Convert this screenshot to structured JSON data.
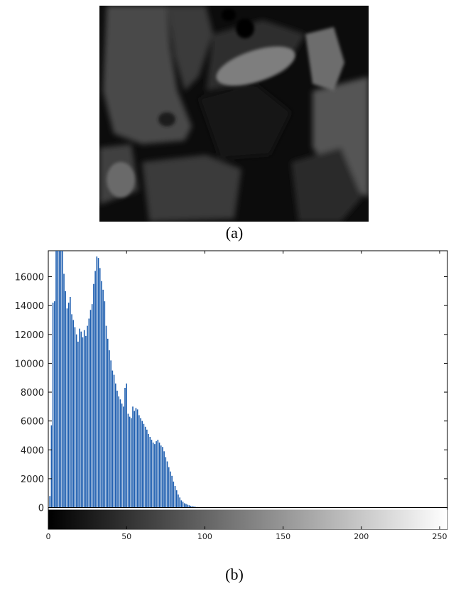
{
  "captions": {
    "a": "(a)",
    "b": "(b)"
  },
  "image_a": {
    "content": "grayscale MRI slice",
    "colors": {
      "background": "#0c0c0c"
    }
  },
  "chart_data": {
    "type": "bar",
    "title": "",
    "xlabel": "",
    "ylabel": "",
    "xlim": [
      0,
      255
    ],
    "ylim": [
      -1500,
      17800
    ],
    "yticks": [
      0,
      2000,
      4000,
      6000,
      8000,
      10000,
      12000,
      14000,
      16000
    ],
    "xticks": [
      0,
      50,
      100,
      150,
      200,
      250
    ],
    "colorbar": {
      "range": [
        0,
        255
      ],
      "from_color": "#000000",
      "to_color": "#ffffff"
    },
    "bar_color": "#1f5fb0",
    "x": [
      1,
      2,
      3,
      4,
      5,
      6,
      7,
      8,
      9,
      10,
      11,
      12,
      13,
      14,
      15,
      16,
      17,
      18,
      19,
      20,
      21,
      22,
      23,
      24,
      25,
      26,
      27,
      28,
      29,
      30,
      31,
      32,
      33,
      34,
      35,
      36,
      37,
      38,
      39,
      40,
      41,
      42,
      43,
      44,
      45,
      46,
      47,
      48,
      49,
      50,
      51,
      52,
      53,
      54,
      55,
      56,
      57,
      58,
      59,
      60,
      61,
      62,
      63,
      64,
      65,
      66,
      67,
      68,
      69,
      70,
      71,
      72,
      73,
      74,
      75,
      76,
      77,
      78,
      79,
      80,
      81,
      82,
      83,
      84,
      85,
      86,
      87,
      88,
      89,
      90,
      91,
      92,
      93,
      94,
      95,
      96,
      97,
      98,
      99,
      100,
      101,
      102,
      103,
      104,
      105
    ],
    "values": [
      800,
      5700,
      14200,
      14300,
      17800,
      17800,
      17800,
      17800,
      17800,
      16200,
      15000,
      13800,
      14200,
      14600,
      13400,
      13000,
      12500,
      12000,
      11500,
      12400,
      12200,
      11800,
      12300,
      11900,
      12600,
      13100,
      13700,
      14100,
      15500,
      16400,
      17400,
      17300,
      16600,
      15700,
      15100,
      14300,
      12600,
      11700,
      10900,
      10200,
      9500,
      9200,
      8600,
      8100,
      7700,
      7500,
      7200,
      7000,
      8300,
      8600,
      6500,
      6300,
      6200,
      7000,
      6700,
      6900,
      6800,
      6400,
      6200,
      6000,
      5800,
      5600,
      5400,
      5100,
      4900,
      4700,
      4500,
      4400,
      4600,
      4700,
      4500,
      4300,
      4200,
      3900,
      3500,
      3200,
      2800,
      2500,
      2200,
      1800,
      1500,
      1200,
      900,
      700,
      500,
      400,
      300,
      250,
      200,
      160,
      120,
      90,
      70,
      50,
      40,
      30,
      20,
      15,
      10,
      8,
      6,
      5,
      4,
      3,
      2
    ]
  }
}
